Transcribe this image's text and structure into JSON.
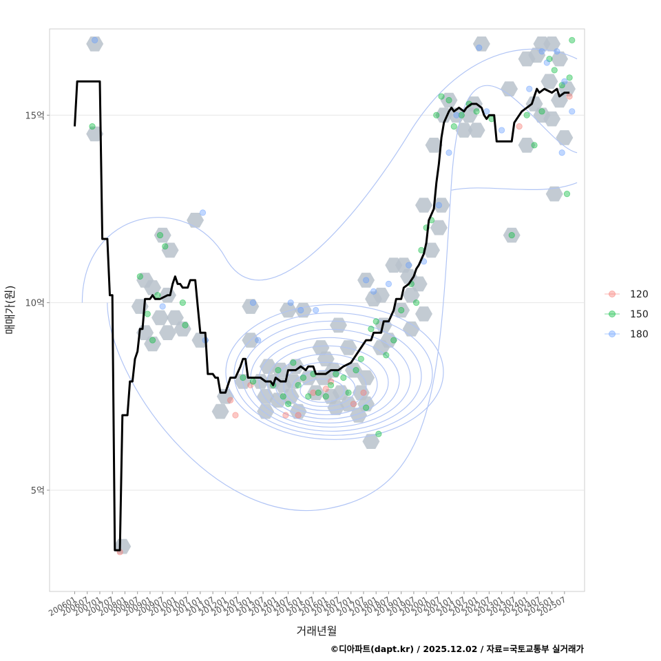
{
  "chart_data": {
    "type": "line",
    "xlabel": "거래년월",
    "ylabel": "매매가(원)",
    "caption": "©디아파트(dapt.kr) / 2025.12.02 / 자료=국토교통부 실거래가",
    "y_ticks": [
      {
        "value": 5,
        "label": "5억"
      },
      {
        "value": 10,
        "label": "10억"
      },
      {
        "value": 15,
        "label": "15억"
      }
    ],
    "ylim": [
      2.3,
      17.3
    ],
    "xlim": [
      2005.0,
      2026.3
    ],
    "x_ticks": [
      "200601",
      "200607",
      "200701",
      "200707",
      "200801",
      "200807",
      "200901",
      "200907",
      "201001",
      "201007",
      "201101",
      "201107",
      "201201",
      "201207",
      "201301",
      "201307",
      "201401",
      "201407",
      "201501",
      "201507",
      "201601",
      "201607",
      "201701",
      "201707",
      "201801",
      "201807",
      "201901",
      "201907",
      "202001",
      "202007",
      "202101",
      "202107",
      "202201",
      "202207",
      "202301",
      "202307",
      "202401",
      "202407",
      "202501",
      "202507"
    ],
    "legend": {
      "title": "",
      "entries": [
        {
          "label": "120",
          "color": "#f8766d"
        },
        {
          "label": "150",
          "color": "#00ba38"
        },
        {
          "label": "180",
          "color": "#619cff"
        }
      ]
    },
    "colors": {
      "line": "#000000",
      "hexbin": "#b9c2cb",
      "contour": "#b0c4f5",
      "grid": "#e6e6e6",
      "panel_border": "#cccccc"
    },
    "series": [
      {
        "name": "moving average price (억)",
        "points": [
          [
            2006.0,
            14.7
          ],
          [
            2006.1,
            15.9
          ],
          [
            2007.0,
            15.9
          ],
          [
            2007.1,
            11.7
          ],
          [
            2007.3,
            11.7
          ],
          [
            2007.4,
            10.2
          ],
          [
            2007.5,
            10.2
          ],
          [
            2007.6,
            3.4
          ],
          [
            2007.8,
            3.4
          ],
          [
            2007.9,
            7.0
          ],
          [
            2008.1,
            7.0
          ],
          [
            2008.2,
            7.9
          ],
          [
            2008.3,
            7.9
          ],
          [
            2008.4,
            8.5
          ],
          [
            2008.5,
            8.7
          ],
          [
            2008.6,
            9.3
          ],
          [
            2008.7,
            9.3
          ],
          [
            2008.8,
            10.1
          ],
          [
            2009.0,
            10.1
          ],
          [
            2009.1,
            10.2
          ],
          [
            2009.2,
            10.1
          ],
          [
            2009.4,
            10.1
          ],
          [
            2009.7,
            10.2
          ],
          [
            2009.8,
            10.2
          ],
          [
            2009.9,
            10.5
          ],
          [
            2010.0,
            10.7
          ],
          [
            2010.1,
            10.5
          ],
          [
            2010.2,
            10.5
          ],
          [
            2010.3,
            10.4
          ],
          [
            2010.5,
            10.4
          ],
          [
            2010.6,
            10.6
          ],
          [
            2010.8,
            10.6
          ],
          [
            2010.9,
            9.9
          ],
          [
            2011.0,
            9.2
          ],
          [
            2011.2,
            9.2
          ],
          [
            2011.3,
            8.1
          ],
          [
            2011.5,
            8.1
          ],
          [
            2011.6,
            8.0
          ],
          [
            2011.7,
            8.0
          ],
          [
            2011.8,
            7.6
          ],
          [
            2011.9,
            7.6
          ],
          [
            2012.0,
            7.6
          ],
          [
            2012.2,
            8.0
          ],
          [
            2012.4,
            8.0
          ],
          [
            2012.6,
            8.3
          ],
          [
            2012.7,
            8.5
          ],
          [
            2012.8,
            8.5
          ],
          [
            2012.9,
            8.0
          ],
          [
            2013.2,
            8.0
          ],
          [
            2013.4,
            8.0
          ],
          [
            2013.6,
            7.9
          ],
          [
            2013.8,
            7.9
          ],
          [
            2013.9,
            7.8
          ],
          [
            2014.0,
            8.0
          ],
          [
            2014.2,
            7.9
          ],
          [
            2014.4,
            7.9
          ],
          [
            2014.5,
            8.2
          ],
          [
            2014.8,
            8.2
          ],
          [
            2015.0,
            8.3
          ],
          [
            2015.2,
            8.2
          ],
          [
            2015.3,
            8.3
          ],
          [
            2015.5,
            8.3
          ],
          [
            2015.6,
            8.1
          ],
          [
            2015.8,
            8.1
          ],
          [
            2016.0,
            8.1
          ],
          [
            2016.2,
            8.2
          ],
          [
            2016.5,
            8.2
          ],
          [
            2016.7,
            8.3
          ],
          [
            2017.0,
            8.4
          ],
          [
            2017.2,
            8.6
          ],
          [
            2017.4,
            8.8
          ],
          [
            2017.6,
            9.0
          ],
          [
            2017.8,
            9.0
          ],
          [
            2017.9,
            9.2
          ],
          [
            2018.2,
            9.2
          ],
          [
            2018.3,
            9.5
          ],
          [
            2018.5,
            9.5
          ],
          [
            2018.7,
            9.8
          ],
          [
            2018.8,
            10.1
          ],
          [
            2019.0,
            10.1
          ],
          [
            2019.1,
            10.4
          ],
          [
            2019.3,
            10.5
          ],
          [
            2019.5,
            10.7
          ],
          [
            2019.6,
            10.9
          ],
          [
            2019.7,
            11.0
          ],
          [
            2019.9,
            11.3
          ],
          [
            2020.0,
            11.6
          ],
          [
            2020.1,
            12.2
          ],
          [
            2020.3,
            12.5
          ],
          [
            2020.4,
            13.2
          ],
          [
            2020.5,
            13.7
          ],
          [
            2020.6,
            14.4
          ],
          [
            2020.7,
            14.8
          ],
          [
            2020.9,
            15.1
          ],
          [
            2021.0,
            15.2
          ],
          [
            2021.1,
            15.1
          ],
          [
            2021.3,
            15.2
          ],
          [
            2021.5,
            15.1
          ],
          [
            2021.6,
            15.2
          ],
          [
            2021.8,
            15.3
          ],
          [
            2022.0,
            15.3
          ],
          [
            2022.2,
            15.2
          ],
          [
            2022.3,
            15.0
          ],
          [
            2022.4,
            14.9
          ],
          [
            2022.5,
            15.0
          ],
          [
            2022.7,
            15.0
          ],
          [
            2022.8,
            14.3
          ],
          [
            2023.0,
            14.3
          ],
          [
            2023.4,
            14.3
          ],
          [
            2023.5,
            14.8
          ],
          [
            2023.6,
            14.9
          ],
          [
            2023.8,
            15.1
          ],
          [
            2024.0,
            15.2
          ],
          [
            2024.2,
            15.3
          ],
          [
            2024.3,
            15.5
          ],
          [
            2024.4,
            15.7
          ],
          [
            2024.5,
            15.6
          ],
          [
            2024.7,
            15.7
          ],
          [
            2025.0,
            15.6
          ],
          [
            2025.2,
            15.7
          ],
          [
            2025.3,
            15.5
          ],
          [
            2025.5,
            15.6
          ],
          [
            2025.7,
            15.6
          ]
        ]
      },
      {
        "name": "120",
        "points": [
          [
            2007.8,
            3.35
          ],
          [
            2012.2,
            7.4
          ],
          [
            2012.4,
            7.0
          ],
          [
            2013.0,
            7.8
          ],
          [
            2014.4,
            7.0
          ],
          [
            2014.9,
            7.0
          ],
          [
            2015.5,
            7.6
          ],
          [
            2016.0,
            7.7
          ],
          [
            2016.2,
            7.9
          ],
          [
            2017.1,
            7.3
          ],
          [
            2017.5,
            7.6
          ],
          [
            2023.7,
            14.7
          ],
          [
            2025.7,
            15.5
          ]
        ]
      },
      {
        "name": "150",
        "points": [
          [
            2006.7,
            14.7
          ],
          [
            2008.6,
            10.7
          ],
          [
            2008.9,
            9.7
          ],
          [
            2009.1,
            9.0
          ],
          [
            2009.3,
            10.2
          ],
          [
            2009.4,
            11.8
          ],
          [
            2009.6,
            11.5
          ],
          [
            2010.3,
            10.0
          ],
          [
            2010.4,
            9.4
          ],
          [
            2012.7,
            8.0
          ],
          [
            2013.1,
            7.9
          ],
          [
            2013.9,
            7.8
          ],
          [
            2014.1,
            8.2
          ],
          [
            2014.3,
            7.5
          ],
          [
            2014.5,
            7.3
          ],
          [
            2014.7,
            8.4
          ],
          [
            2014.9,
            7.8
          ],
          [
            2015.1,
            8.0
          ],
          [
            2015.3,
            7.5
          ],
          [
            2015.5,
            8.1
          ],
          [
            2015.7,
            7.6
          ],
          [
            2016.0,
            7.5
          ],
          [
            2016.2,
            7.8
          ],
          [
            2016.4,
            8.1
          ],
          [
            2016.7,
            8.0
          ],
          [
            2016.9,
            7.6
          ],
          [
            2017.2,
            8.2
          ],
          [
            2017.4,
            8.5
          ],
          [
            2017.6,
            7.2
          ],
          [
            2017.8,
            9.3
          ],
          [
            2018.0,
            9.5
          ],
          [
            2018.1,
            6.5
          ],
          [
            2018.4,
            8.6
          ],
          [
            2018.7,
            9.0
          ],
          [
            2019.0,
            9.8
          ],
          [
            2019.4,
            10.5
          ],
          [
            2019.6,
            10.0
          ],
          [
            2019.8,
            11.4
          ],
          [
            2020.0,
            12.0
          ],
          [
            2020.2,
            12.2
          ],
          [
            2020.4,
            15.0
          ],
          [
            2020.6,
            15.5
          ],
          [
            2020.9,
            15.4
          ],
          [
            2021.1,
            14.7
          ],
          [
            2021.4,
            15.0
          ],
          [
            2021.7,
            15.3
          ],
          [
            2022.0,
            15.1
          ],
          [
            2022.6,
            14.9
          ],
          [
            2023.4,
            11.8
          ],
          [
            2024.0,
            15.0
          ],
          [
            2024.3,
            14.2
          ],
          [
            2024.6,
            15.1
          ],
          [
            2024.9,
            16.5
          ],
          [
            2025.1,
            16.2
          ],
          [
            2025.4,
            15.8
          ],
          [
            2025.6,
            12.9
          ],
          [
            2025.7,
            16.0
          ],
          [
            2025.8,
            17.0
          ]
        ]
      },
      {
        "name": "180",
        "points": [
          [
            2006.8,
            17.0
          ],
          [
            2009.5,
            9.9
          ],
          [
            2011.1,
            12.4
          ],
          [
            2011.2,
            9.0
          ],
          [
            2013.1,
            10.0
          ],
          [
            2013.3,
            9.0
          ],
          [
            2014.6,
            10.0
          ],
          [
            2015.0,
            9.8
          ],
          [
            2015.6,
            9.8
          ],
          [
            2017.6,
            10.6
          ],
          [
            2017.9,
            10.3
          ],
          [
            2018.5,
            10.5
          ],
          [
            2019.3,
            11.0
          ],
          [
            2019.9,
            11.1
          ],
          [
            2020.5,
            12.6
          ],
          [
            2020.9,
            14.0
          ],
          [
            2021.2,
            15.0
          ],
          [
            2022.1,
            16.8
          ],
          [
            2022.4,
            15.1
          ],
          [
            2023.0,
            14.6
          ],
          [
            2024.1,
            15.7
          ],
          [
            2024.6,
            16.7
          ],
          [
            2024.8,
            16.4
          ],
          [
            2025.2,
            16.7
          ],
          [
            2025.5,
            15.9
          ],
          [
            2025.8,
            15.1
          ],
          [
            2025.4,
            14.0
          ]
        ]
      }
    ],
    "hexbin_centers": [
      [
        2006.8,
        16.9
      ],
      [
        2006.8,
        14.5
      ],
      [
        2007.9,
        3.5
      ],
      [
        2008.8,
        10.6
      ],
      [
        2008.6,
        9.9
      ],
      [
        2009.1,
        10.4
      ],
      [
        2008.8,
        9.2
      ],
      [
        2009.4,
        9.6
      ],
      [
        2009.1,
        8.9
      ],
      [
        2009.7,
        9.2
      ],
      [
        2010.0,
        9.6
      ],
      [
        2010.3,
        9.3
      ],
      [
        2009.7,
        10.2
      ],
      [
        2009.5,
        11.8
      ],
      [
        2009.8,
        11.4
      ],
      [
        2010.8,
        12.2
      ],
      [
        2011.0,
        9.0
      ],
      [
        2011.8,
        7.1
      ],
      [
        2012.0,
        7.5
      ],
      [
        2012.7,
        7.9
      ],
      [
        2013.0,
        9.9
      ],
      [
        2013.0,
        9.0
      ],
      [
        2013.4,
        7.9
      ],
      [
        2013.7,
        8.3
      ],
      [
        2013.9,
        7.9
      ],
      [
        2013.6,
        7.5
      ],
      [
        2014.1,
        7.4
      ],
      [
        2013.6,
        7.1
      ],
      [
        2014.3,
        7.8
      ],
      [
        2014.6,
        7.5
      ],
      [
        2014.9,
        7.1
      ],
      [
        2014.7,
        7.9
      ],
      [
        2014.2,
        8.2
      ],
      [
        2014.8,
        8.3
      ],
      [
        2014.5,
        9.8
      ],
      [
        2015.1,
        9.8
      ],
      [
        2015.3,
        8.0
      ],
      [
        2015.6,
        7.6
      ],
      [
        2015.9,
        8.0
      ],
      [
        2016.0,
        8.5
      ],
      [
        2015.8,
        8.8
      ],
      [
        2016.3,
        8.2
      ],
      [
        2016.6,
        7.6
      ],
      [
        2016.4,
        7.2
      ],
      [
        2016.2,
        7.5
      ],
      [
        2016.5,
        9.4
      ],
      [
        2016.9,
        8.8
      ],
      [
        2017.1,
        8.2
      ],
      [
        2016.9,
        7.3
      ],
      [
        2017.4,
        7.6
      ],
      [
        2017.6,
        8.0
      ],
      [
        2017.3,
        7.0
      ],
      [
        2017.6,
        7.3
      ],
      [
        2017.8,
        6.3
      ],
      [
        2017.6,
        10.6
      ],
      [
        2017.9,
        10.1
      ],
      [
        2018.2,
        10.2
      ],
      [
        2018.3,
        9.4
      ],
      [
        2018.2,
        8.8
      ],
      [
        2018.5,
        9.0
      ],
      [
        2018.7,
        11.0
      ],
      [
        2019.1,
        11.0
      ],
      [
        2019.0,
        9.8
      ],
      [
        2019.4,
        10.2
      ],
      [
        2019.3,
        10.7
      ],
      [
        2019.7,
        10.5
      ],
      [
        2019.4,
        9.3
      ],
      [
        2019.9,
        9.7
      ],
      [
        2019.9,
        12.6
      ],
      [
        2020.2,
        11.4
      ],
      [
        2020.5,
        12.0
      ],
      [
        2020.6,
        12.6
      ],
      [
        2020.3,
        14.2
      ],
      [
        2020.7,
        15.0
      ],
      [
        2020.9,
        15.4
      ],
      [
        2021.2,
        15.0
      ],
      [
        2021.5,
        14.6
      ],
      [
        2021.7,
        15.0
      ],
      [
        2021.9,
        15.3
      ],
      [
        2022.0,
        14.6
      ],
      [
        2022.2,
        16.9
      ],
      [
        2023.4,
        11.8
      ],
      [
        2023.3,
        15.7
      ],
      [
        2024.0,
        16.5
      ],
      [
        2024.4,
        16.6
      ],
      [
        2024.6,
        16.9
      ],
      [
        2025.0,
        16.9
      ],
      [
        2025.3,
        16.5
      ],
      [
        2024.9,
        15.9
      ],
      [
        2024.3,
        15.3
      ],
      [
        2024.6,
        15.0
      ],
      [
        2025.0,
        14.9
      ],
      [
        2025.3,
        15.4
      ],
      [
        2025.5,
        14.4
      ],
      [
        2024.0,
        14.2
      ],
      [
        2025.1,
        12.9
      ],
      [
        2025.6,
        15.7
      ]
    ]
  }
}
